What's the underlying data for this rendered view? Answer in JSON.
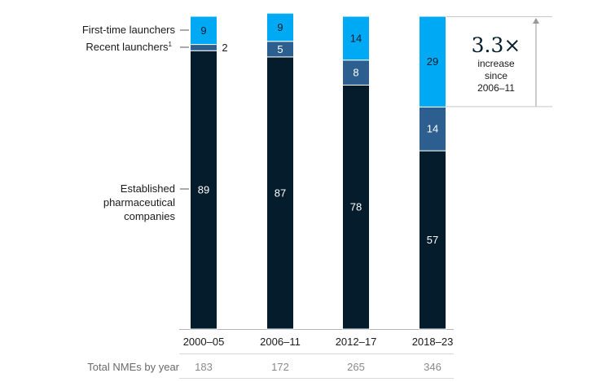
{
  "chart_data": {
    "type": "bar",
    "stacked": true,
    "categories": [
      "2000–05",
      "2006–11",
      "2012–17",
      "2018–23"
    ],
    "series": [
      {
        "name": "Established pharmaceutical companies",
        "values": [
          89,
          87,
          78,
          57
        ],
        "color": "#051c2c"
      },
      {
        "name": "Recent launchers",
        "name_sup": "1",
        "values": [
          2,
          5,
          8,
          14
        ],
        "color": "#2c5f8f"
      },
      {
        "name": "First-time launchers",
        "values": [
          9,
          9,
          14,
          29
        ],
        "color": "#00a9f4"
      }
    ],
    "ylim": [
      0,
      100
    ],
    "unit": "%",
    "totals": {
      "label": "Total NMEs by year",
      "values": [
        183,
        172,
        265,
        346
      ]
    },
    "callout": {
      "value": "3.3×",
      "text": [
        "increase",
        "since",
        "2006–11"
      ]
    },
    "grid": false
  }
}
